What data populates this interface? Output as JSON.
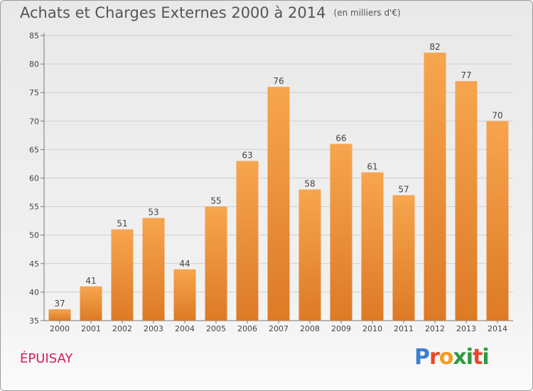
{
  "chart_data": {
    "type": "bar",
    "title": "Achats et Charges Externes 2000 à 2014",
    "subtitle": "(en milliers d'€)",
    "categories": [
      "2000",
      "2001",
      "2002",
      "2003",
      "2004",
      "2005",
      "2006",
      "2007",
      "2008",
      "2009",
      "2010",
      "2011",
      "2012",
      "2013",
      "2014"
    ],
    "values": [
      37,
      41,
      51,
      53,
      44,
      55,
      63,
      76,
      58,
      66,
      61,
      57,
      82,
      77,
      70
    ],
    "ylim": [
      35,
      85
    ],
    "yticks": [
      35,
      40,
      45,
      50,
      55,
      60,
      65,
      70,
      75,
      80,
      85
    ],
    "grid": true,
    "xlabel": "",
    "ylabel": ""
  },
  "location_name": "ÉPUISAY",
  "logo": {
    "text": "Proxiti",
    "letter_colors": [
      "#3a7fd4",
      "#e8472c",
      "#f39c1a",
      "#2e9a3e",
      "#2e9a3e",
      "#e8472c",
      "#2e9a3e"
    ]
  },
  "colors": {
    "bar_top": "#f7a54e",
    "bar_bottom": "#dd7a26",
    "grid": "#cfcfcf",
    "location": "#d11f55"
  }
}
